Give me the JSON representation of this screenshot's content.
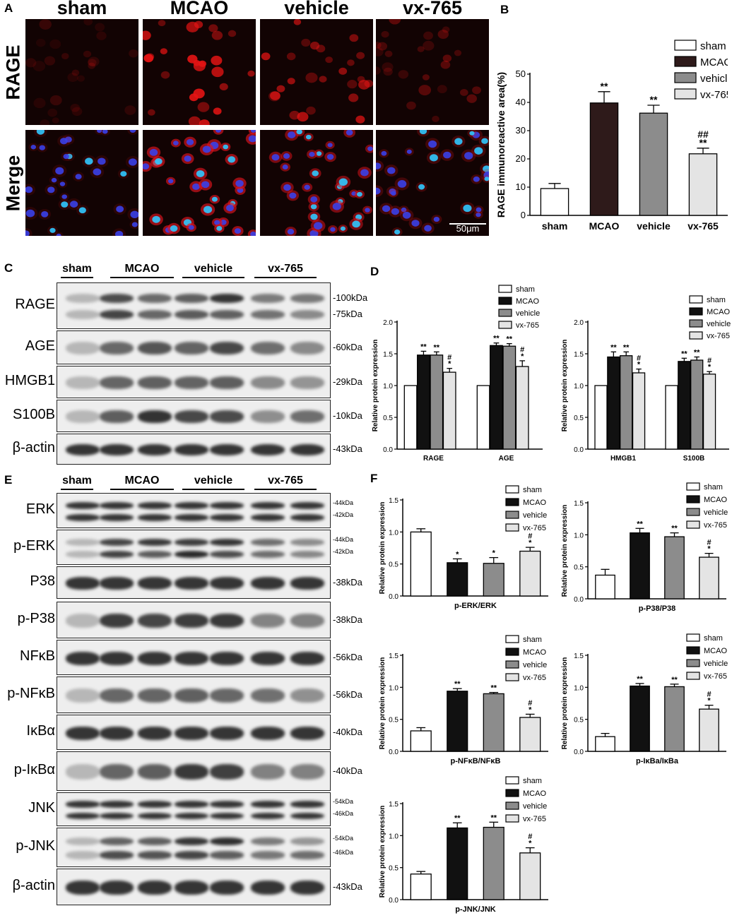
{
  "panels": {
    "A": {
      "letter": "A",
      "columns": [
        "sham",
        "MCAO",
        "vehicle",
        "vx-765"
      ],
      "rows": [
        "RAGE",
        "Merge"
      ],
      "scale_bar": "50μm"
    },
    "B": {
      "letter": "B"
    },
    "C": {
      "letter": "C",
      "lane_groups": [
        "sham",
        "MCAO",
        "vehicle",
        "vx-765"
      ],
      "blots": [
        {
          "label": "RAGE",
          "markers": [
            "-100kDa",
            "-75kDa"
          ]
        },
        {
          "label": "AGE",
          "markers": [
            "-60kDa"
          ]
        },
        {
          "label": "HMGB1",
          "markers": [
            "-29kDa"
          ]
        },
        {
          "label": "S100B",
          "markers": [
            "-10kDa"
          ]
        },
        {
          "label": "β-actin",
          "markers": [
            "-43kDa"
          ]
        }
      ]
    },
    "D": {
      "letter": "D"
    },
    "E": {
      "letter": "E",
      "lane_groups": [
        "sham",
        "MCAO",
        "vehicle",
        "vx-765"
      ],
      "blots": [
        {
          "label": "ERK",
          "markers": [
            "-44kDa",
            "-42kDa"
          ],
          "small": true
        },
        {
          "label": "p-ERK",
          "markers": [
            "-44kDa",
            "-42kDa"
          ],
          "small": true
        },
        {
          "label": "P38",
          "markers": [
            "-38kDa"
          ]
        },
        {
          "label": "p-P38",
          "markers": [
            "-38kDa"
          ]
        },
        {
          "label": "NFκB",
          "markers": [
            "-56kDa"
          ]
        },
        {
          "label": "p-NFκB",
          "markers": [
            "-56kDa"
          ]
        },
        {
          "label": "IκBα",
          "markers": [
            "-40kDa"
          ]
        },
        {
          "label": "p-IκBα",
          "markers": [
            "-40kDa"
          ]
        },
        {
          "label": "JNK",
          "markers": [
            "-54kDa",
            "-46kDa"
          ],
          "small": true
        },
        {
          "label": "p-JNK",
          "markers": [
            "-54kDa",
            "-46kDa"
          ],
          "small": true
        },
        {
          "label": "β-actin",
          "markers": [
            "-43kDa"
          ]
        }
      ]
    },
    "F": {
      "letter": "F"
    }
  },
  "legend_labels": [
    "sham",
    "MCAO",
    "vehicle",
    "vx-765"
  ],
  "colors": {
    "sham": "#ffffff",
    "MCAO_B": "#2e1a1a",
    "MCAO": "#111111",
    "vehicle": "#8c8c8c",
    "vx765": "#e4e4e4"
  },
  "chart_data": [
    {
      "id": "B",
      "type": "bar",
      "categories": [
        "sham",
        "MCAO",
        "vehicle",
        "vx-765"
      ],
      "values": [
        9.5,
        39.8,
        36.2,
        21.8
      ],
      "errors": [
        1.8,
        4.0,
        2.8,
        2.0
      ],
      "annotations": [
        "",
        "**",
        "**",
        "##\n**"
      ],
      "ylabel": "RAGE immunoreactive area(%)",
      "ylim": [
        0,
        50
      ],
      "yticks": [
        0,
        10,
        20,
        30,
        40,
        50
      ]
    },
    {
      "id": "D1",
      "type": "bar",
      "groups": [
        "RAGE",
        "AGE"
      ],
      "series": [
        {
          "name": "sham",
          "values": [
            1.0,
            1.0
          ]
        },
        {
          "name": "MCAO",
          "values": [
            1.48,
            1.63
          ]
        },
        {
          "name": "vehicle",
          "values": [
            1.48,
            1.62
          ]
        },
        {
          "name": "vx-765",
          "values": [
            1.21,
            1.3
          ]
        }
      ],
      "errors": [
        [
          0,
          0.06,
          0.05,
          0.06
        ],
        [
          0,
          0.04,
          0.04,
          0.09
        ]
      ],
      "annotations": [
        [
          "",
          "**",
          "**",
          "#\n*"
        ],
        [
          "",
          "**",
          "**",
          "#\n*"
        ]
      ],
      "ylabel": "Relative protein expression",
      "ylim": [
        0,
        2.0
      ],
      "yticks": [
        0.0,
        0.5,
        1.0,
        1.5,
        2.0
      ]
    },
    {
      "id": "D2",
      "type": "bar",
      "groups": [
        "HMGB1",
        "S100B"
      ],
      "series": [
        {
          "name": "sham",
          "values": [
            1.0,
            1.0
          ]
        },
        {
          "name": "MCAO",
          "values": [
            1.45,
            1.38
          ]
        },
        {
          "name": "vehicle",
          "values": [
            1.47,
            1.4
          ]
        },
        {
          "name": "vx-765",
          "values": [
            1.2,
            1.18
          ]
        }
      ],
      "errors": [
        [
          0,
          0.08,
          0.06,
          0.06
        ],
        [
          0,
          0.05,
          0.05,
          0.04
        ]
      ],
      "annotations": [
        [
          "",
          "**",
          "**",
          "#\n*"
        ],
        [
          "",
          "**",
          "**",
          "#\n*"
        ]
      ],
      "ylabel": "Relative protein expression",
      "ylim": [
        0,
        2.0
      ],
      "yticks": [
        0.0,
        0.5,
        1.0,
        1.5,
        2.0
      ]
    },
    {
      "id": "F1",
      "type": "bar",
      "categories": [
        "sham",
        "MCAO",
        "vehicle",
        "vx-765"
      ],
      "values": [
        1.0,
        0.52,
        0.51,
        0.7
      ],
      "errors": [
        0.05,
        0.06,
        0.09,
        0.06
      ],
      "annotations": [
        "",
        "*",
        "*",
        "#\n*"
      ],
      "xlabel": "p-ERK/ERK",
      "ylabel": "Relative protein expression",
      "ylim": [
        0,
        1.5
      ],
      "yticks": [
        0.0,
        0.5,
        1.0,
        1.5
      ]
    },
    {
      "id": "F2",
      "type": "bar",
      "categories": [
        "sham",
        "MCAO",
        "vehicle",
        "vx-765"
      ],
      "values": [
        0.37,
        1.03,
        0.97,
        0.65
      ],
      "errors": [
        0.09,
        0.07,
        0.06,
        0.06
      ],
      "annotations": [
        "",
        "**",
        "**",
        "#\n*"
      ],
      "xlabel": "p-P38/P38",
      "ylabel": "Relative protein expression",
      "ylim": [
        0,
        1.5
      ],
      "yticks": [
        0.0,
        0.5,
        1.0,
        1.5
      ]
    },
    {
      "id": "F3",
      "type": "bar",
      "categories": [
        "sham",
        "MCAO",
        "vehicle",
        "vx-765"
      ],
      "values": [
        0.32,
        0.94,
        0.9,
        0.53
      ],
      "errors": [
        0.05,
        0.04,
        0.02,
        0.05
      ],
      "annotations": [
        "",
        "**",
        "**",
        "#\n*"
      ],
      "xlabel": "p-NFκB/NFκB",
      "ylabel": "Relative protein expression",
      "ylim": [
        0,
        1.5
      ],
      "yticks": [
        0.0,
        0.5,
        1.0,
        1.5
      ]
    },
    {
      "id": "F4",
      "type": "bar",
      "categories": [
        "sham",
        "MCAO",
        "vehicle",
        "vx-765"
      ],
      "values": [
        0.23,
        1.02,
        1.01,
        0.66
      ],
      "errors": [
        0.05,
        0.04,
        0.04,
        0.06
      ],
      "annotations": [
        "",
        "**",
        "**",
        "#\n*"
      ],
      "xlabel": "p-IκBa/IκBa",
      "ylabel": "Relative protein expression",
      "ylim": [
        0,
        1.5
      ],
      "yticks": [
        0.0,
        0.5,
        1.0,
        1.5
      ]
    },
    {
      "id": "F5",
      "type": "bar",
      "categories": [
        "sham",
        "MCAO",
        "vehicle",
        "vx-765"
      ],
      "values": [
        0.4,
        1.12,
        1.13,
        0.73
      ],
      "errors": [
        0.04,
        0.08,
        0.08,
        0.08
      ],
      "annotations": [
        "",
        "**",
        "**",
        "#\n*"
      ],
      "xlabel": "p-JNK/JNK",
      "ylabel": "Relative protein expression",
      "ylim": [
        0,
        1.5
      ],
      "yticks": [
        0.0,
        0.5,
        1.0,
        1.5
      ]
    }
  ]
}
